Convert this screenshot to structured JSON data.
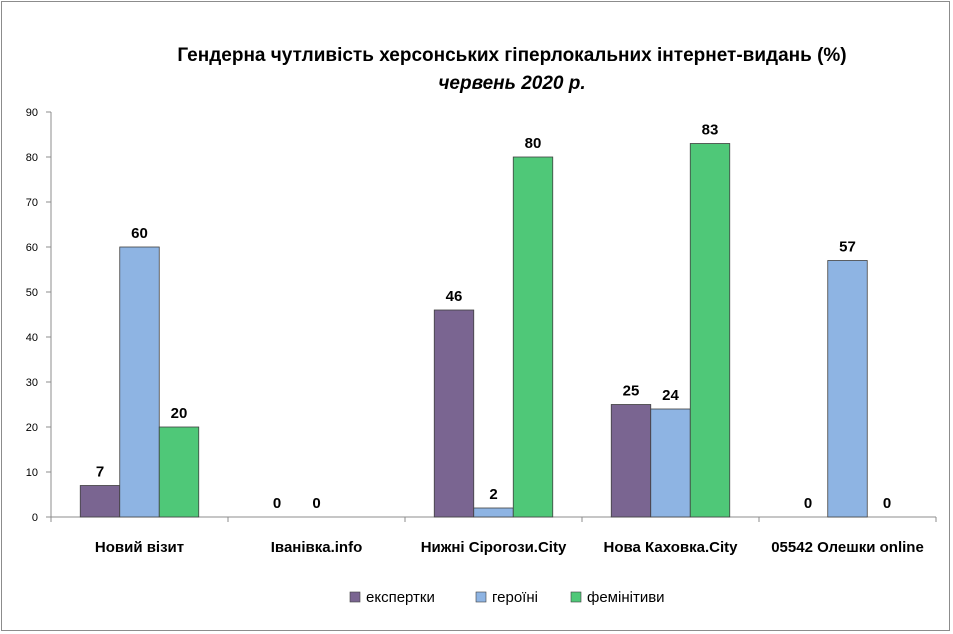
{
  "chart_data": {
    "type": "bar",
    "title": "Гендерна чутливість херсонських гіперлокальних інтернет-видань (%)",
    "subtitle": "червень 2020 р.",
    "categories": [
      "Новий візит",
      "Іванівка.info",
      "Нижні Сірогози.City",
      "Нова Каховка.City",
      "05542 Олешки online"
    ],
    "series": [
      {
        "name": "експертки",
        "color": "#7a6591",
        "values": [
          7,
          0,
          46,
          25,
          0
        ],
        "labels": [
          "7",
          "0",
          "46",
          "25",
          "0"
        ]
      },
      {
        "name": "героїні",
        "color": "#8eb4e3",
        "values": [
          60,
          0,
          2,
          24,
          57
        ],
        "labels": [
          "60",
          "0",
          "2",
          "24",
          "57"
        ]
      },
      {
        "name": "фемінітиви",
        "color": "#4fc878",
        "values": [
          20,
          0,
          80,
          83,
          0
        ],
        "labels": [
          "20",
          "",
          "80",
          "83",
          "0"
        ]
      }
    ],
    "ylim": [
      0,
      90
    ],
    "yticks": [
      "0",
      "10",
      "20",
      "30",
      "40",
      "50",
      "60",
      "70",
      "80",
      "90"
    ],
    "grid": false,
    "legend_position": "bottom"
  }
}
